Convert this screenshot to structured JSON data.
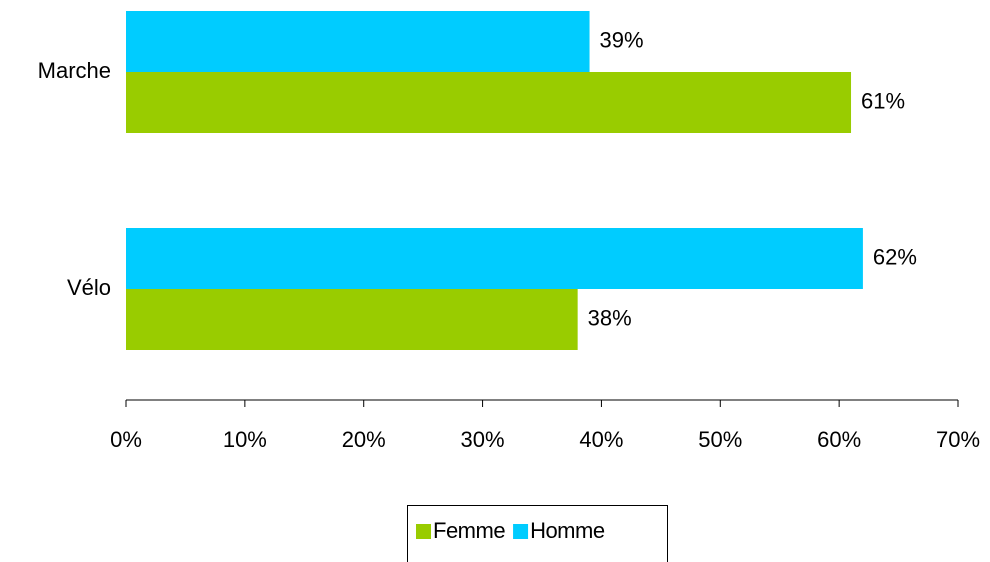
{
  "chart_data": {
    "type": "bar",
    "orientation": "horizontal",
    "categories": [
      "Marche",
      "Vélo"
    ],
    "series": [
      {
        "name": "Femme",
        "color": "#99cc00",
        "values": [
          61,
          38
        ],
        "value_labels": [
          "61%",
          "38%"
        ]
      },
      {
        "name": "Homme",
        "color": "#00ccff",
        "values": [
          39,
          62
        ],
        "value_labels": [
          "39%",
          "62%"
        ]
      }
    ],
    "xlim": [
      0,
      70
    ],
    "xticks": [
      {
        "value": 0,
        "label": "0%"
      },
      {
        "value": 10,
        "label": "10%"
      },
      {
        "value": 20,
        "label": "20%"
      },
      {
        "value": 30,
        "label": "30%"
      },
      {
        "value": 40,
        "label": "40%"
      },
      {
        "value": 50,
        "label": "50%"
      },
      {
        "value": 60,
        "label": "60%"
      },
      {
        "value": 70,
        "label": "70%"
      }
    ],
    "legend": "bottom"
  }
}
